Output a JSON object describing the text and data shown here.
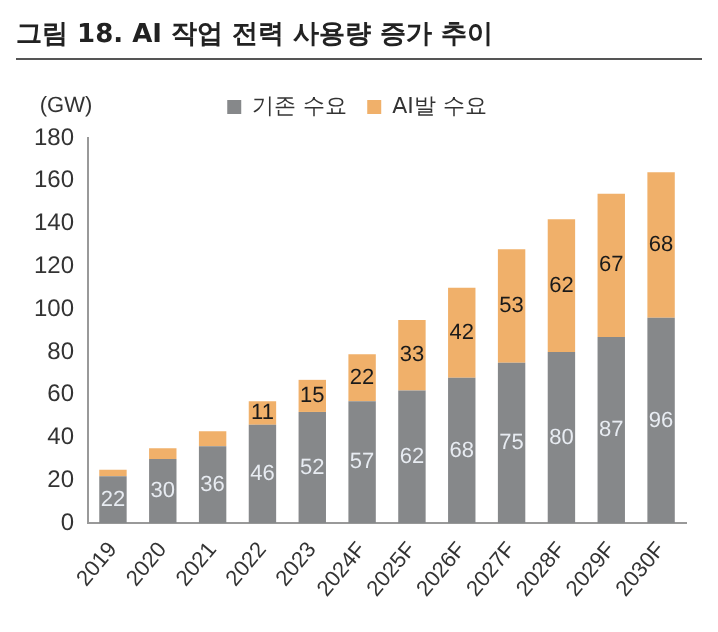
{
  "chart_data": {
    "type": "bar",
    "title": "그림 18. AI 작업 전력 사용량 증가 추이",
    "ylabel": "(GW)",
    "categories": [
      "2019",
      "2020",
      "2021",
      "2022",
      "2023",
      "2024F",
      "2025F",
      "2026F",
      "2027F",
      "2028F",
      "2029F",
      "2030F"
    ],
    "series": [
      {
        "name": "기존 수요",
        "color": "#86888a",
        "values": [
          22,
          30,
          36,
          46,
          52,
          57,
          62,
          68,
          75,
          80,
          87,
          96
        ],
        "value_labels": [
          "22",
          "30",
          "36",
          "46",
          "52",
          "57",
          "62",
          "68",
          "75",
          "80",
          "87",
          "96"
        ]
      },
      {
        "name": "AI발 수요",
        "color": "#f0b06a",
        "values": [
          3,
          5,
          7,
          11,
          15,
          22,
          33,
          42,
          53,
          62,
          67,
          68
        ],
        "value_labels": [
          null,
          null,
          null,
          "11",
          "15",
          "22",
          "33",
          "42",
          "53",
          "62",
          "67",
          "68"
        ]
      }
    ],
    "stacked": true,
    "ylim": [
      0,
      180
    ],
    "yticks": [
      0,
      20,
      40,
      60,
      80,
      100,
      120,
      140,
      160,
      180
    ],
    "grid": false,
    "legend": "top"
  }
}
